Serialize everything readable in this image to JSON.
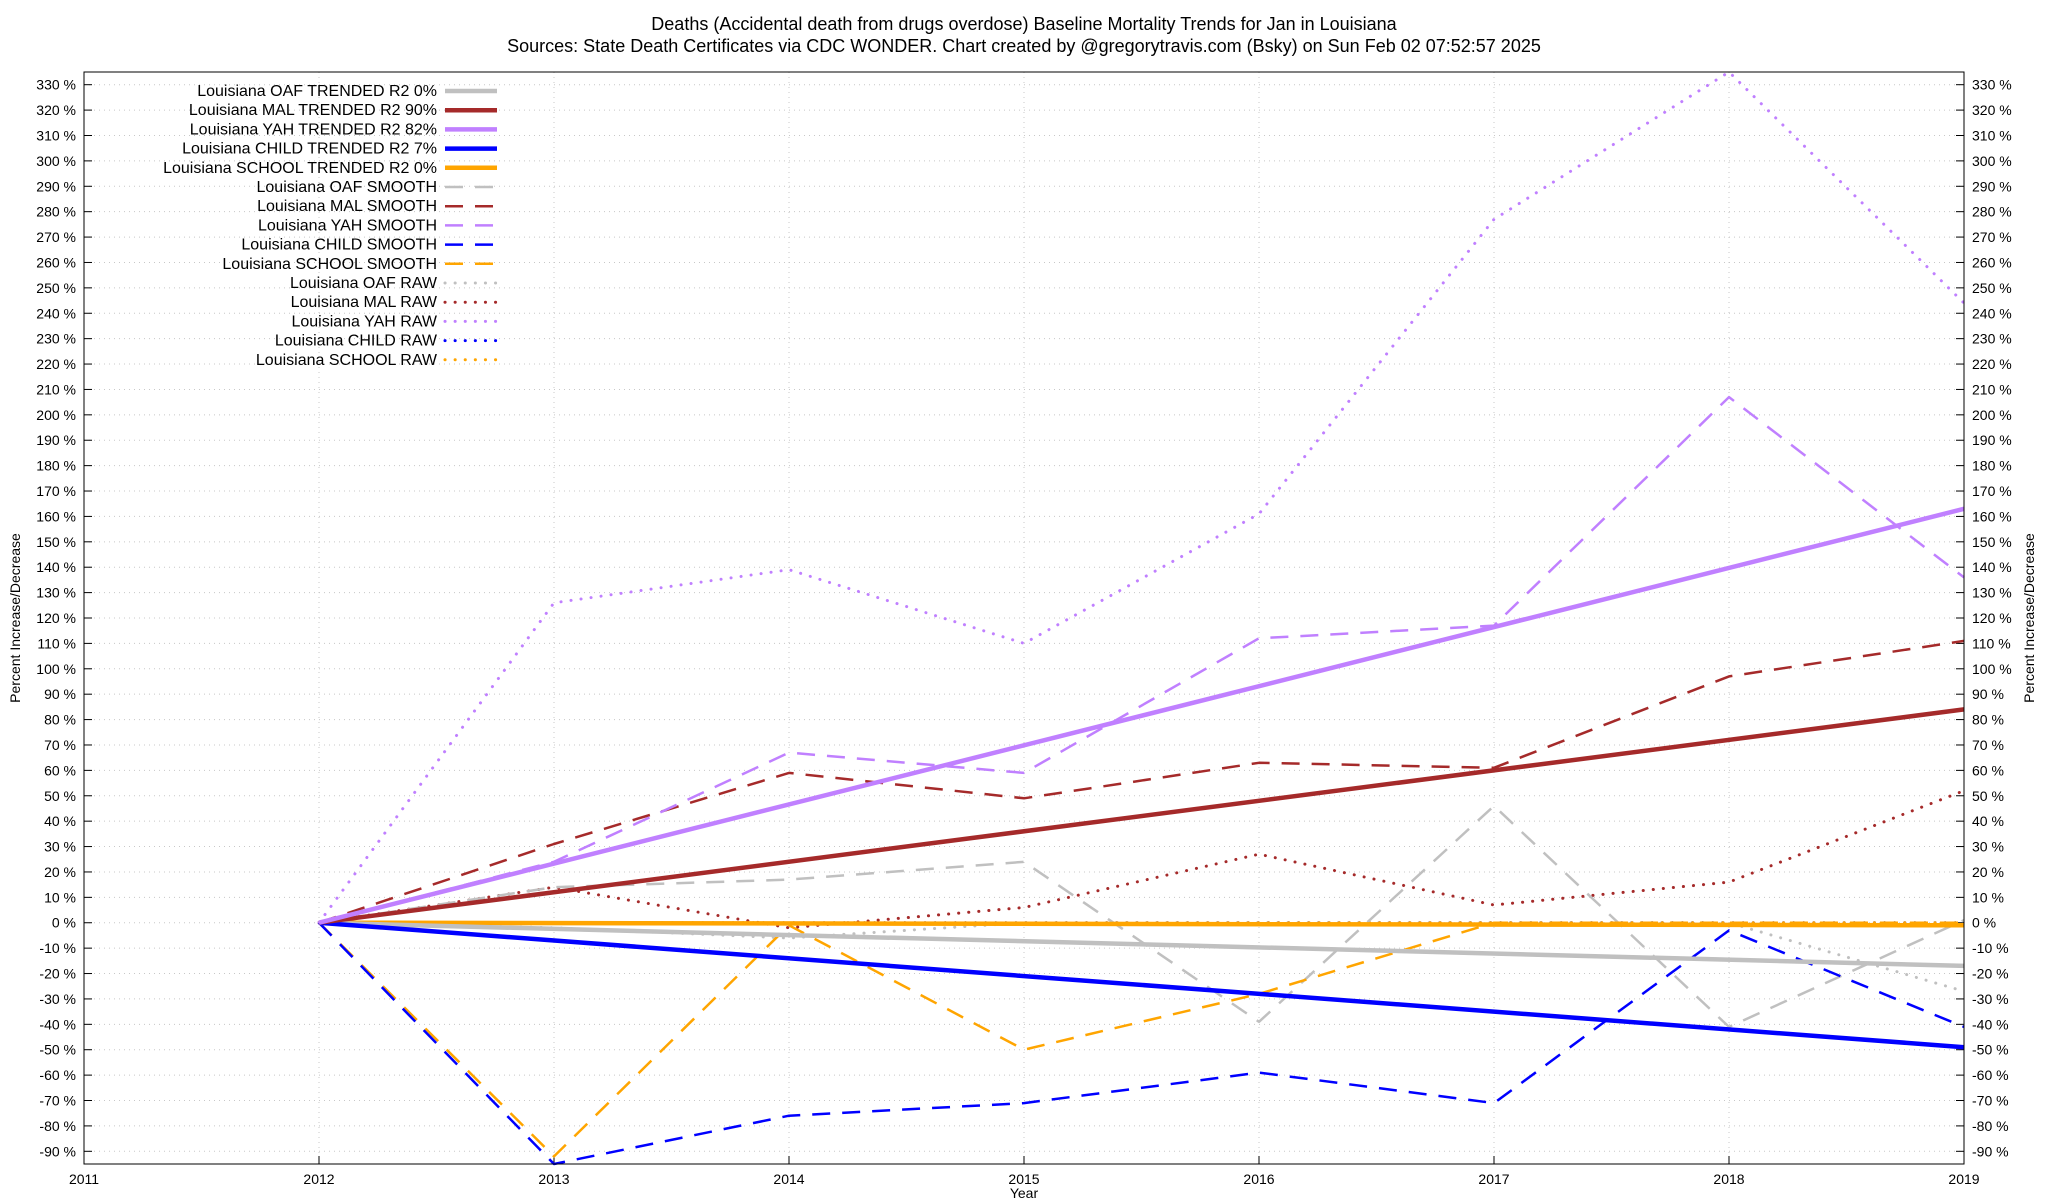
{
  "chart_data": {
    "type": "line",
    "title_line1": "Deaths (Accidental death from drugs overdose)  Baseline Mortality Trends for Jan in Louisiana",
    "title_line2": "Sources: State Death Certificates via CDC WONDER.              Chart created by @gregorytravis.com (Bsky) on Sun Feb 02 07:52:57 2025",
    "xlabel": "Year",
    "ylabel_left": "Percent Increase/Decrease",
    "ylabel_right": "Percent Increase/Decrease",
    "xlim": [
      2011,
      2019
    ],
    "ylim": [
      -95,
      335
    ],
    "x_ticks": [
      2011,
      2012,
      2013,
      2014,
      2015,
      2016,
      2017,
      2018,
      2019
    ],
    "y_ticks": [
      -90,
      -80,
      -70,
      -60,
      -50,
      -40,
      -30,
      -20,
      -10,
      0,
      10,
      20,
      30,
      40,
      50,
      60,
      70,
      80,
      90,
      100,
      110,
      120,
      130,
      140,
      150,
      160,
      170,
      180,
      190,
      200,
      210,
      220,
      230,
      240,
      250,
      260,
      270,
      280,
      290,
      300,
      310,
      320,
      330
    ],
    "y_tick_suffix": " %",
    "grid": true,
    "legend_position": "top-left",
    "series": [
      {
        "name": "Louisiana OAF TRENDED R2   0%",
        "style": "trend",
        "color": "#c0c0c0",
        "x": [
          2012,
          2019
        ],
        "y": [
          0,
          -17
        ]
      },
      {
        "name": "Louisiana MAL TRENDED R2  90%",
        "style": "trend",
        "color": "#a52a2a",
        "x": [
          2012,
          2019
        ],
        "y": [
          0,
          84
        ]
      },
      {
        "name": "Louisiana YAH TRENDED R2  82%",
        "style": "trend",
        "color": "#c080ff",
        "x": [
          2012,
          2019
        ],
        "y": [
          0,
          163
        ]
      },
      {
        "name": "Louisiana CHILD TRENDED R2   7%",
        "style": "trend",
        "color": "#0000ff",
        "x": [
          2012,
          2019
        ],
        "y": [
          0,
          -49
        ]
      },
      {
        "name": "Louisiana SCHOOL TRENDED R2   0%",
        "style": "trend",
        "color": "#ffa500",
        "x": [
          2012,
          2019
        ],
        "y": [
          0,
          -1
        ]
      },
      {
        "name": "Louisiana OAF SMOOTH",
        "style": "smooth",
        "color": "#c0c0c0",
        "x": [
          2012,
          2013,
          2014,
          2015,
          2016,
          2017,
          2018,
          2019
        ],
        "y": [
          0,
          14,
          17,
          24,
          -39,
          46,
          -41,
          1
        ]
      },
      {
        "name": "Louisiana MAL SMOOTH",
        "style": "smooth",
        "color": "#a52a2a",
        "x": [
          2012,
          2013,
          2014,
          2015,
          2016,
          2017,
          2018,
          2019
        ],
        "y": [
          0,
          31,
          59,
          49,
          63,
          61,
          97,
          111
        ]
      },
      {
        "name": "Louisiana YAH SMOOTH",
        "style": "smooth",
        "color": "#c080ff",
        "x": [
          2012,
          2013,
          2014,
          2015,
          2016,
          2017,
          2018,
          2019
        ],
        "y": [
          0,
          24,
          67,
          59,
          112,
          117,
          207,
          136
        ]
      },
      {
        "name": "Louisiana CHILD SMOOTH",
        "style": "smooth",
        "color": "#0000ff",
        "x": [
          2012,
          2013,
          2014,
          2015,
          2016,
          2017,
          2018,
          2019
        ],
        "y": [
          0,
          -95,
          -76,
          -71,
          -59,
          -71,
          -3,
          -41
        ]
      },
      {
        "name": "Louisiana SCHOOL SMOOTH",
        "style": "smooth",
        "color": "#ffa500",
        "x": [
          2012,
          2013,
          2014,
          2015,
          2016,
          2017,
          2018,
          2019
        ],
        "y": [
          0,
          -92,
          -1,
          -50,
          -28,
          0,
          0,
          0
        ]
      },
      {
        "name": "Louisiana OAF RAW",
        "style": "raw",
        "color": "#c0c0c0",
        "x": [
          2012,
          2013,
          2014,
          2015,
          2016,
          2017,
          2018,
          2019
        ],
        "y": [
          0,
          -2,
          -6,
          0,
          0,
          0,
          0,
          -27
        ]
      },
      {
        "name": "Louisiana MAL RAW",
        "style": "raw",
        "color": "#a52a2a",
        "x": [
          2012,
          2013,
          2014,
          2015,
          2016,
          2017,
          2018,
          2019
        ],
        "y": [
          0,
          14,
          -2,
          6,
          27,
          7,
          16,
          52
        ]
      },
      {
        "name": "Louisiana YAH RAW",
        "style": "raw",
        "color": "#c080ff",
        "x": [
          2012,
          2013,
          2014,
          2015,
          2016,
          2017,
          2018,
          2019
        ],
        "y": [
          0,
          126,
          139,
          110,
          161,
          277,
          335,
          244
        ]
      },
      {
        "name": "Louisiana CHILD RAW",
        "style": "raw",
        "color": "#0000ff",
        "x": [
          2012,
          2013,
          2014,
          2015,
          2016,
          2017,
          2018,
          2019
        ],
        "y": [
          0,
          0,
          0,
          0,
          0,
          0,
          0,
          0
        ]
      },
      {
        "name": "Louisiana SCHOOL RAW",
        "style": "raw",
        "color": "#ffa500",
        "x": [
          2012,
          2013,
          2014,
          2015,
          2016,
          2017,
          2018,
          2019
        ],
        "y": [
          0,
          0,
          0,
          0,
          0,
          0,
          0,
          0
        ]
      }
    ]
  }
}
